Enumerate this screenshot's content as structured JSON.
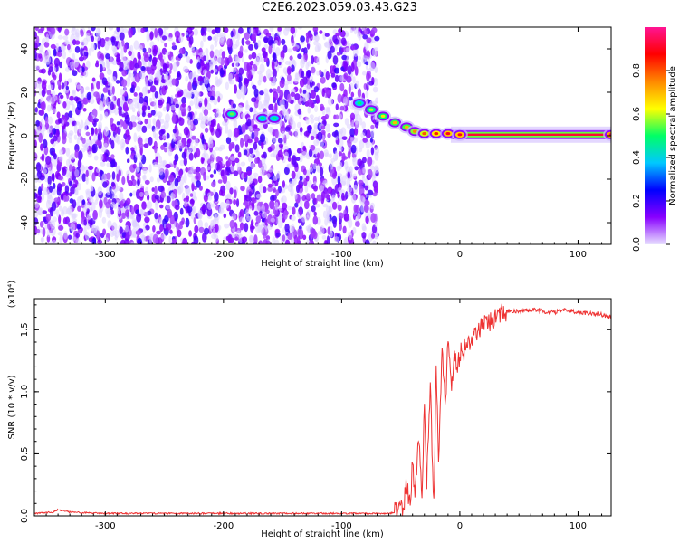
{
  "title": "C2E6.2023.059.03.43.G23",
  "colors": {
    "snr_line": "#ee3333",
    "speckle": "#8a2be2",
    "colorbar_stops": [
      "#e8e0ff",
      "#8800ff",
      "#0000ff",
      "#00c8ff",
      "#00ff66",
      "#ffff00",
      "#ff8800",
      "#ff0000",
      "#ff1493"
    ]
  },
  "chart_data": [
    {
      "name": "spectrogram",
      "type": "heatmap",
      "xlabel": "Height of straight line (km)",
      "ylabel": "Frequency (Hz)",
      "xlim": [
        -360,
        128
      ],
      "ylim": [
        -50,
        50
      ],
      "x_ticks": [
        -300,
        -200,
        -100,
        0,
        100
      ],
      "y_ticks": [
        -40,
        -20,
        0,
        20,
        40
      ],
      "colorbar": {
        "label": "Normalized spectral amplitude",
        "range": [
          0,
          1
        ],
        "ticks": [
          "0.0",
          "0.2",
          "0.4",
          "0.6",
          "0.8"
        ]
      },
      "noise_region": {
        "x": [
          -360,
          -70
        ],
        "y": [
          -50,
          50
        ],
        "amplitude": [
          0.0,
          0.3
        ]
      },
      "features": [
        {
          "x": -193,
          "y": 10,
          "amplitude": 0.55
        },
        {
          "x": -167,
          "y": 8,
          "amplitude": 0.5
        },
        {
          "x": -157,
          "y": 8,
          "amplitude": 0.5
        },
        {
          "x": -85,
          "y": 15,
          "amplitude": 0.5
        },
        {
          "x": -75,
          "y": 12,
          "amplitude": 0.6
        },
        {
          "x": -65,
          "y": 9,
          "amplitude": 0.65
        },
        {
          "x": -55,
          "y": 6,
          "amplitude": 0.7
        },
        {
          "x": -45,
          "y": 4,
          "amplitude": 0.7
        },
        {
          "x": -38,
          "y": 2,
          "amplitude": 0.75
        },
        {
          "x": -30,
          "y": 1,
          "amplitude": 0.8
        },
        {
          "x": -20,
          "y": 1,
          "amplitude": 0.85
        },
        {
          "x": -10,
          "y": 1,
          "amplitude": 0.9
        },
        {
          "x": 0,
          "y": 0.5,
          "amplitude": 0.9
        },
        {
          "x": 128,
          "y": 0.5,
          "amplitude": 0.95
        }
      ]
    },
    {
      "name": "snr",
      "type": "line",
      "xlabel": "Height of straight line (km)",
      "ylabel": "SNR (10 * v/v)",
      "y_multiplier": "(x10⁴)",
      "xlim": [
        -360,
        128
      ],
      "ylim": [
        0,
        1.75
      ],
      "x_ticks": [
        -300,
        -200,
        -100,
        0,
        100
      ],
      "y_ticks": [
        "0.0",
        "0.5",
        "1.0",
        "1.5"
      ],
      "series": [
        {
          "x": [
            -360,
            -345,
            -340,
            -330,
            -300,
            -250,
            -200,
            -150,
            -100,
            -60,
            -52,
            -48,
            -45,
            -42,
            -40,
            -38,
            -35,
            -32,
            -30,
            -28,
            -25,
            -22,
            -20,
            -18,
            -15,
            -12,
            -10,
            -7,
            -5,
            -2,
            0,
            5,
            10,
            15,
            20,
            25,
            30,
            35,
            40,
            50,
            60,
            70,
            80,
            90,
            100,
            110,
            120,
            128
          ],
          "y": [
            0.02,
            0.03,
            0.05,
            0.03,
            0.02,
            0.02,
            0.02,
            0.02,
            0.02,
            0.02,
            0.03,
            0.08,
            0.25,
            0.1,
            0.45,
            0.15,
            0.65,
            0.2,
            0.85,
            0.3,
            1.05,
            0.1,
            1.2,
            0.5,
            1.3,
            0.9,
            1.45,
            1.0,
            1.35,
            1.2,
            1.3,
            1.35,
            1.42,
            1.48,
            1.52,
            1.56,
            1.6,
            1.62,
            1.64,
            1.65,
            1.66,
            1.65,
            1.64,
            1.66,
            1.64,
            1.63,
            1.62,
            1.6
          ]
        }
      ]
    }
  ]
}
